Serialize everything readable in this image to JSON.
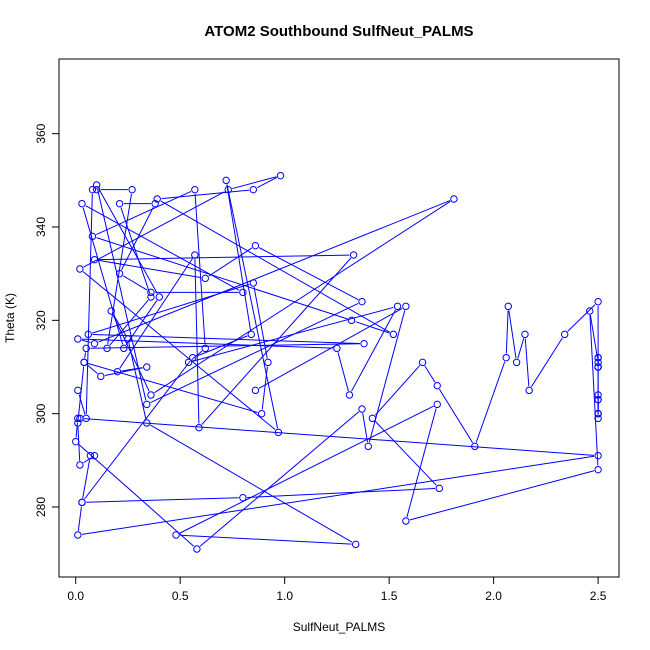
{
  "chart_data": {
    "type": "line",
    "title": "ATOM2 Southbound SulfNeut_PALMS",
    "xlabel": "SulfNeut_PALMS",
    "ylabel": "Theta (K)",
    "xlim": [
      -0.08,
      2.6
    ],
    "ylim": [
      265,
      376
    ],
    "xticks": [
      0.0,
      0.5,
      1.0,
      1.5,
      2.0,
      2.5
    ],
    "xtick_labels": [
      "0.0",
      "0.5",
      "1.0",
      "1.5",
      "2.0",
      "2.5"
    ],
    "yticks": [
      280,
      300,
      320,
      340,
      360
    ],
    "ytick_labels": [
      "280",
      "300",
      "320",
      "340",
      "360"
    ],
    "series": [
      {
        "color": "#0000ff",
        "marker": "open-circle",
        "x": [
          0.01,
          0.05,
          0.08,
          0.1,
          0.27,
          0.15,
          0.36,
          0.21,
          0.38,
          0.21,
          0.36,
          0.8,
          0.03,
          0.23,
          0.4,
          0.1,
          0.34,
          1.37,
          0.86,
          0.62,
          0.09,
          1.33,
          0.59,
          0.57,
          0.2,
          0.34,
          0.12,
          0.04,
          0.89,
          0.92,
          0.85,
          0.06,
          1.38,
          0.05,
          0.04,
          0.01,
          0.02,
          0.09,
          0.07,
          0.03,
          0.56,
          0.84,
          0.72,
          0.97,
          0.02,
          0.73,
          0.98,
          0.85,
          0.39,
          1.52,
          1.32,
          0.08,
          0.57,
          0.62,
          0.54,
          1.54,
          1.31,
          1.25,
          0.01,
          0.09,
          1.81,
          0.36,
          0.17,
          0.25,
          0.34,
          1.34,
          0.48,
          1.73,
          1.58,
          2.5,
          2.46,
          2.5,
          2.5,
          2.5,
          2.5,
          2.5,
          2.5,
          2.5,
          2.5,
          2.5,
          2.5,
          2.5,
          2.5,
          2.5,
          2.5,
          2.34,
          2.17,
          2.15,
          2.11,
          2.07,
          2.06,
          1.91,
          1.73,
          1.66,
          1.42,
          1.74,
          0.8,
          0.03,
          0.01,
          2.5,
          0.02,
          0.01,
          0.0,
          0.58,
          1.37,
          1.4,
          1.58,
          0.86
        ],
        "y": [
          305,
          299,
          348,
          348,
          348,
          314,
          325,
          345,
          345,
          330,
          326,
          326,
          345,
          314,
          325,
          349,
          302,
          324,
          336,
          329,
          333,
          334,
          297,
          334,
          309,
          310,
          308,
          311,
          300,
          311,
          328,
          317,
          315,
          314,
          311,
          298,
          289,
          291,
          291,
          281,
          312,
          317,
          350,
          296,
          331,
          348,
          351,
          348,
          346,
          317,
          320,
          338,
          348,
          314,
          311,
          323,
          304,
          314,
          316,
          315,
          346,
          304,
          322,
          316,
          298,
          272,
          274,
          302,
          277,
          288,
          322,
          311,
          310,
          312,
          310,
          312,
          310,
          300,
          303,
          303,
          299,
          304,
          300,
          300,
          324,
          317,
          305,
          317,
          311,
          323,
          312,
          293,
          306,
          311,
          299,
          284,
          282,
          281,
          274,
          291,
          299,
          299,
          294,
          271,
          301,
          293,
          323,
          305
        ]
      }
    ]
  }
}
